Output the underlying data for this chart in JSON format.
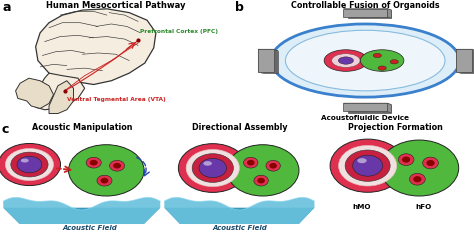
{
  "panel_a_title": "Human Mesocortical Pathway",
  "panel_b_title": "Controllable Fusion of Organoids",
  "panel_b_subtitle": "Acoustofluidic Device",
  "panel_c1_title": "Acoustic Manipulation",
  "panel_c2_title": "Directional Assembly",
  "panel_c3_title": "Projection Formation",
  "label_pfc": "Prefrontal Cortex (PFC)",
  "label_vta": "Ventral Tegmental Area (VTA)",
  "label_acoustic_field": "Acoustic Field",
  "label_hmo": "hMO",
  "label_hfo": "hFO",
  "color_bg": "#ffffff",
  "color_brain_fill": "#f5ede0",
  "color_brain_edge": "#333333",
  "color_pfc": "#2a8a2a",
  "color_vta": "#cc2222",
  "color_red_outer": "#e03050",
  "color_red_mid": "#c82040",
  "color_red_white": "#f5e8e8",
  "color_purple": "#6838a8",
  "color_green": "#50b83c",
  "color_device_gray": "#808080",
  "color_device_light": "#b0b0b0",
  "color_blue_ring": "#3a80cc",
  "color_dish_fill": "#e8f2fa",
  "color_platform": "#5cb8d8",
  "color_platform_dark": "#3898b8",
  "color_red_spot": "#cc2020",
  "color_arrow_red": "#cc2020",
  "color_arrow_blue": "#2848b0"
}
